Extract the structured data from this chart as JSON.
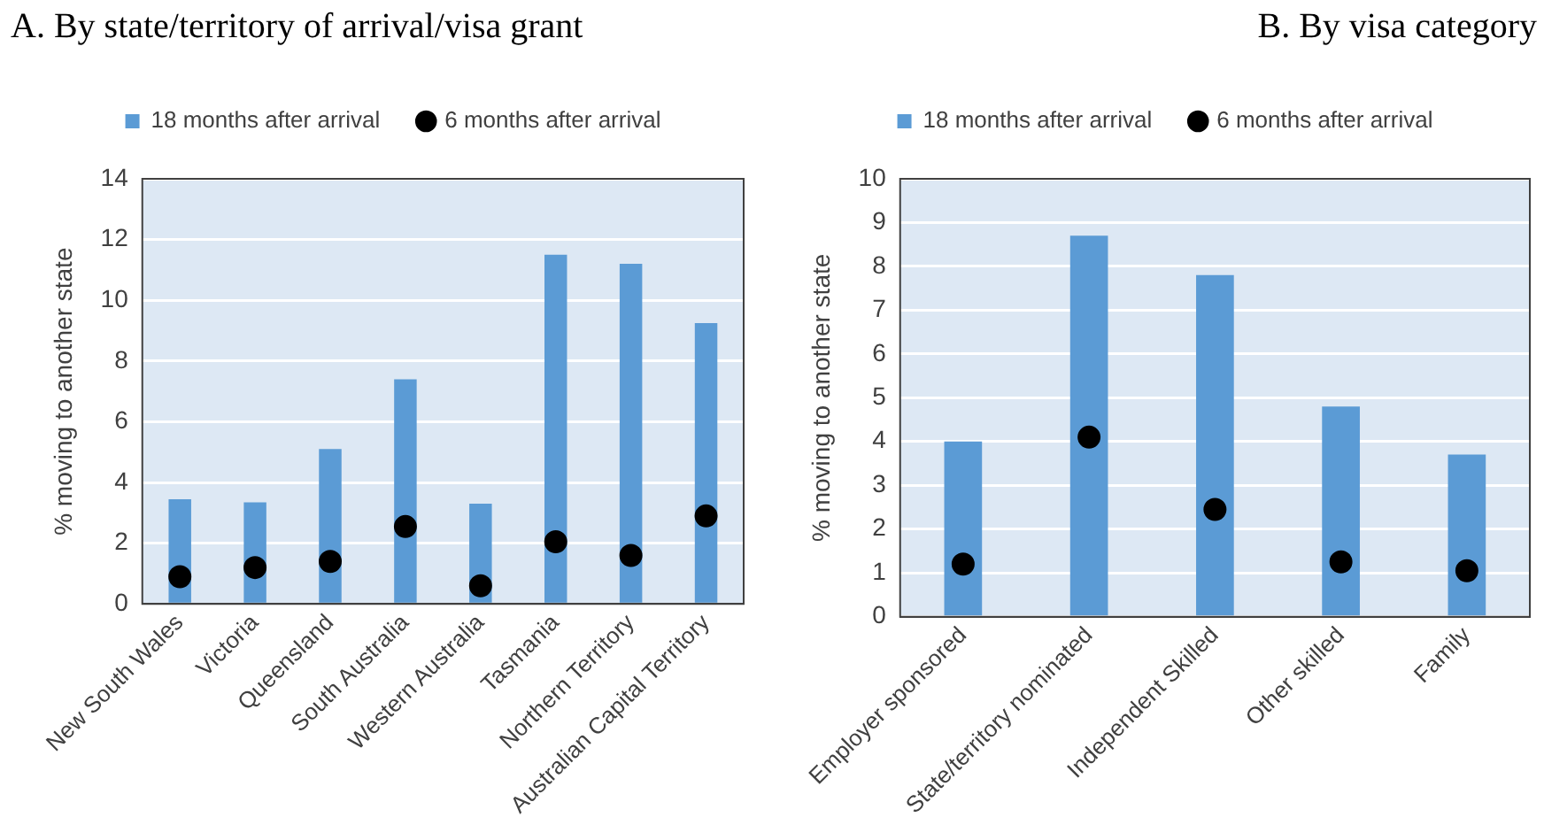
{
  "chart_data": [
    {
      "type": "bar",
      "title": "A. By state/territory of arrival/visa grant",
      "ylabel": "% moving to another state",
      "categories": [
        "New South Wales",
        "Victoria",
        "Queensland",
        "South Australia",
        "Western Australia",
        "Tasmania",
        "Northern Territory",
        "Australian Capital Territory"
      ],
      "series": [
        {
          "name": "18 months after arrival",
          "color": "#5b9bd5",
          "values": [
            3.45,
            3.35,
            5.1,
            7.4,
            3.3,
            11.5,
            11.2,
            9.25
          ]
        },
        {
          "name": "6 months after arrival",
          "type": "scatter",
          "color": "#000000",
          "x": [
            "New South Wales",
            "Victoria",
            "Queensland",
            "South Australia",
            "Western Australia",
            "Tasmania",
            "Northern Territory",
            "Australian Capital Territory"
          ],
          "values": [
            0.9,
            1.2,
            1.4,
            2.55,
            0.6,
            2.05,
            1.6,
            2.9
          ]
        }
      ],
      "ylim": [
        0,
        14
      ],
      "yticks": [
        0,
        2,
        4,
        6,
        8,
        10,
        12,
        14
      ],
      "grid": "y",
      "legend": "top",
      "marker": "circle"
    },
    {
      "type": "bar",
      "title": "B. By visa category",
      "ylabel": "% moving to another state",
      "categories": [
        "Employer sponsored",
        "State/territory nominated",
        "Independent Skilled",
        "Other skilled",
        "Family"
      ],
      "series": [
        {
          "name": "18 months after arrival",
          "color": "#5b9bd5",
          "values": [
            4.0,
            8.7,
            7.8,
            4.8,
            3.7
          ]
        },
        {
          "name": "6 months after arrival",
          "type": "scatter",
          "color": "#000000",
          "x": [
            "Employer sponsored",
            "State/territory nominated",
            "Independent Skilled",
            "Other skilled",
            "Family"
          ],
          "values": [
            1.2,
            4.1,
            2.45,
            1.25,
            1.05
          ]
        }
      ],
      "ylim": [
        0,
        10
      ],
      "yticks": [
        0,
        1,
        2,
        3,
        4,
        5,
        6,
        7,
        8,
        9,
        10
      ],
      "grid": "y",
      "legend": "top",
      "marker": "circle"
    }
  ]
}
